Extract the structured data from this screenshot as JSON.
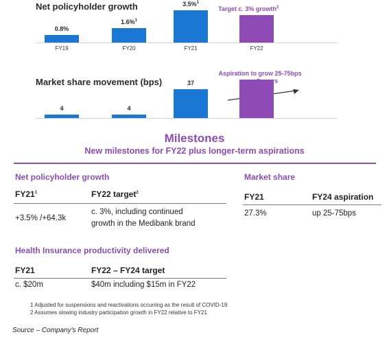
{
  "charts": {
    "policyholder": {
      "title": "Net policyholder growth",
      "target_label": "Target c. 3% growth",
      "target_sup": "2",
      "colors": {
        "actual": "#1a78d4",
        "target": "#8e4bb5"
      }
    },
    "market": {
      "title": "Market share movement (bps)",
      "aspiration_label_1": "Aspiration to grow 25-75bps",
      "aspiration_label_2": "over 3 years"
    }
  },
  "chart_data": [
    {
      "type": "bar",
      "title": "Net policyholder growth",
      "categories": [
        "FY19",
        "FY20",
        "FY21",
        "FY22"
      ],
      "values": [
        0.8,
        1.6,
        3.5,
        3.0
      ],
      "labels": [
        "0.8%",
        "1.6%",
        "3.5%",
        ""
      ],
      "label_sups": [
        "",
        "1",
        "1",
        ""
      ]
    },
    {
      "type": "bar",
      "title": "Market share movement (bps)",
      "categories": [
        "",
        "",
        "",
        ""
      ],
      "values": [
        4,
        4,
        37,
        50
      ],
      "labels": [
        "4",
        "4",
        "37",
        ""
      ]
    }
  ],
  "milestones": {
    "title": "Milestones",
    "subtitle": "New milestones for FY22 plus longer-term aspirations"
  },
  "nph": {
    "heading": "Net policyholder growth",
    "col1": "FY21",
    "col1_sup": "1",
    "col2": "FY22 target",
    "col2_sup": "2",
    "val1": "+3.5% /+64.3k",
    "val2_line1": "c. 3%, including continued",
    "val2_line2": "growth in the Medibank brand"
  },
  "ms": {
    "heading": "Market share",
    "col1": "FY21",
    "col2": "FY24 aspiration",
    "val1": "27.3%",
    "val2": "up 25-75bps"
  },
  "hip": {
    "heading": "Health Insurance productivity delivered",
    "col1": "FY21",
    "col2": "FY22 – FY24 target",
    "val1": "c. $20m",
    "val2": "$40m including $15m in FY22"
  },
  "footnotes": {
    "f1": "1  Adjusted for suspensions and reactivations occurring as the result of COVID-19",
    "f2": "2  Assumes slowing industry participation growth in FY22 relative to FY21"
  },
  "source": "Source – Company's Report"
}
